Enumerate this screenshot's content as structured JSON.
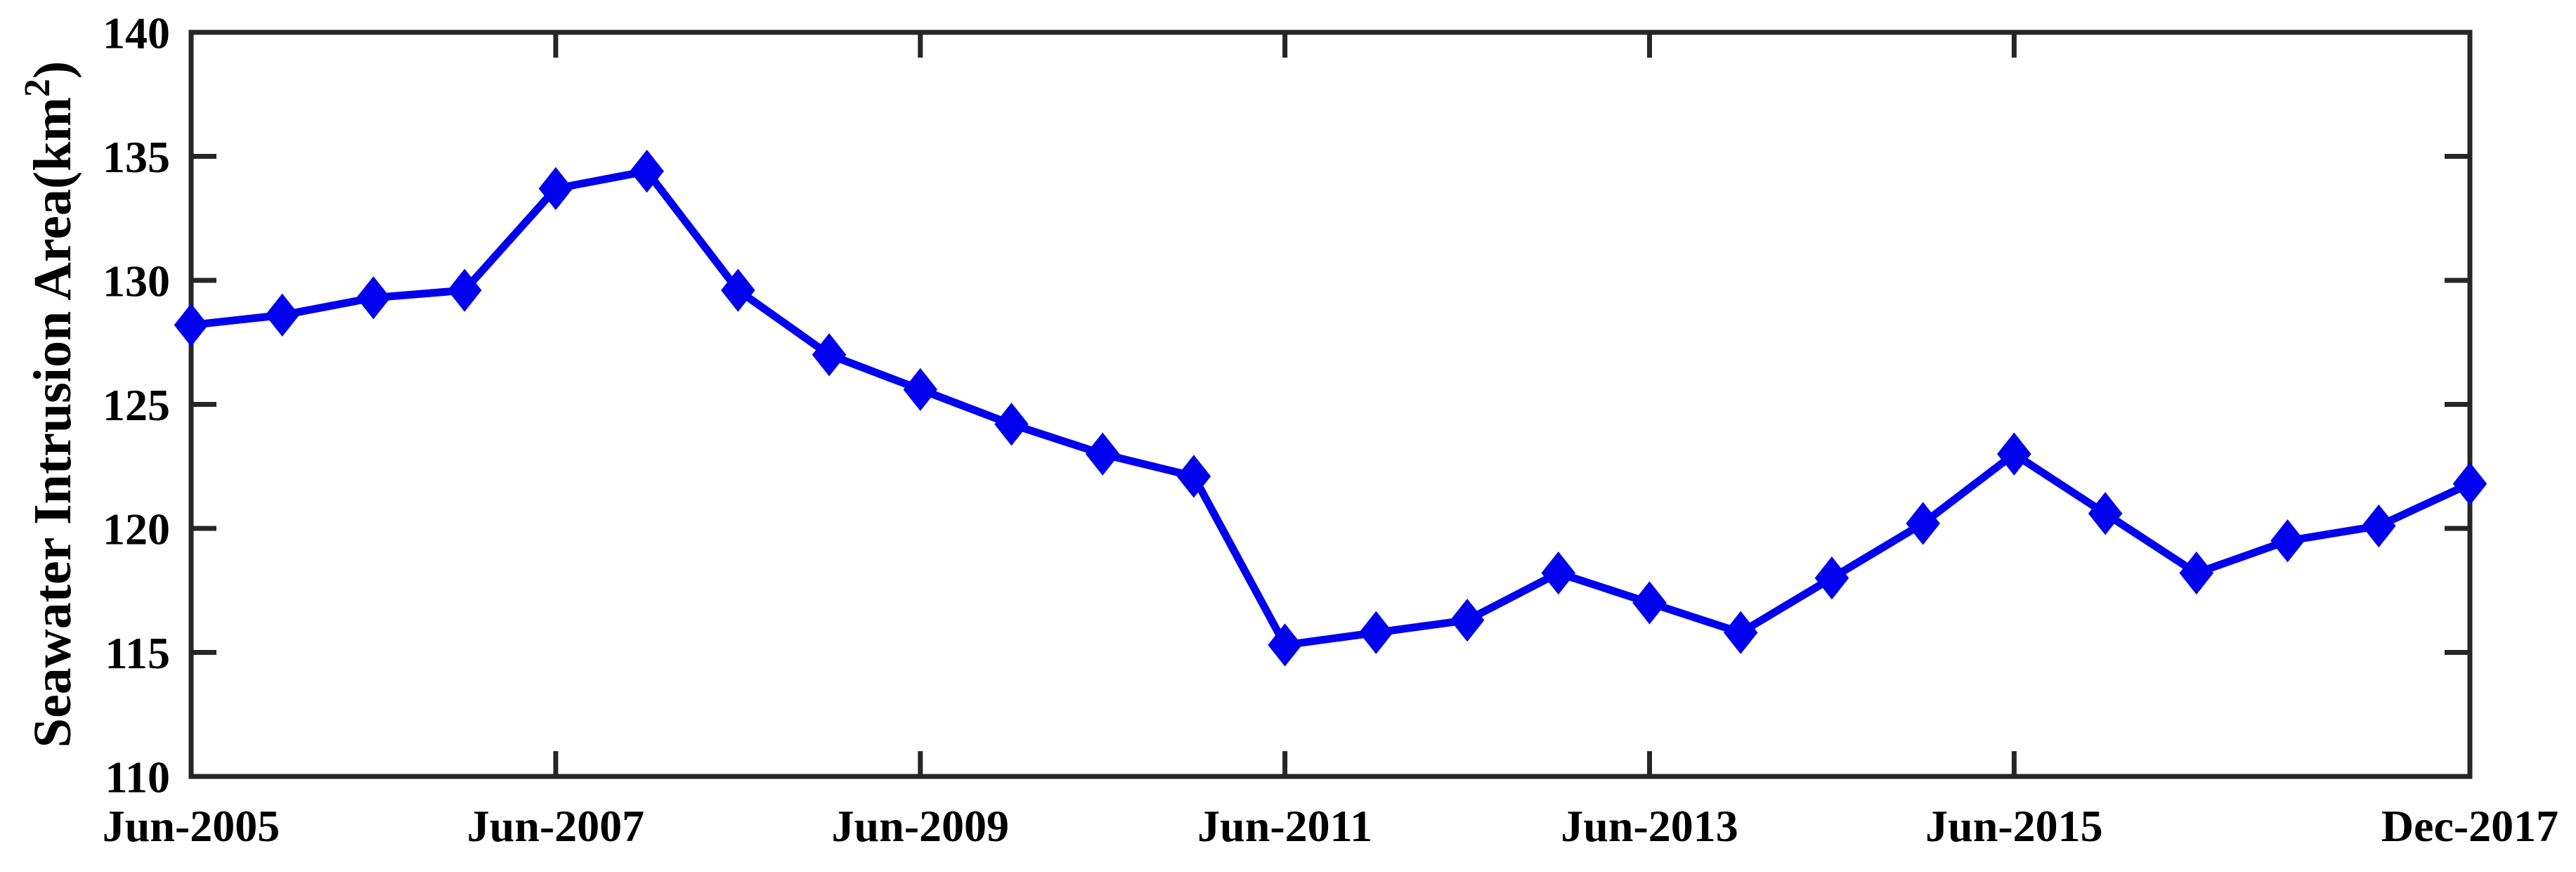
{
  "figure": {
    "background": "#ffffff",
    "axis_color": "#262626",
    "text_color": "#000000"
  },
  "chart_data": {
    "type": "line",
    "title": "",
    "xlabel": "",
    "ylabel": "Seawater Intrusion Area(km2)",
    "ylabel_base": "Seawater Intrusion Area(km",
    "ylabel_superscript": "2",
    "ylabel_close": ")",
    "ylim": [
      110,
      140
    ],
    "yticks": [
      110,
      115,
      120,
      125,
      130,
      135,
      140
    ],
    "grid": false,
    "legend_position": "none",
    "xtick_labels": [
      "Jun-2005",
      "Jun-2007",
      "Jun-2009",
      "Jun-2011",
      "Jun-2013",
      "Jun-2015",
      "Dec-2017"
    ],
    "xtick_indices": [
      0,
      4,
      8,
      12,
      16,
      20,
      25
    ],
    "categories": [
      "Jun-2005",
      "Dec-2005",
      "Jun-2006",
      "Dec-2006",
      "Jun-2007",
      "Dec-2007",
      "Jun-2008",
      "Dec-2008",
      "Jun-2009",
      "Dec-2009",
      "Jun-2010",
      "Dec-2010",
      "Jun-2011",
      "Dec-2011",
      "Jun-2012",
      "Dec-2012",
      "Jun-2013",
      "Dec-2013",
      "Jun-2014",
      "Dec-2014",
      "Jun-2015",
      "Dec-2015",
      "Jun-2016",
      "Dec-2016",
      "Jun-2017",
      "Dec-2017"
    ],
    "series": [
      {
        "name": "Seawater Intrusion Area",
        "color": "#0000EE",
        "marker": "diamond",
        "values": [
          128.2,
          128.6,
          129.3,
          129.6,
          133.7,
          134.4,
          129.6,
          127.0,
          125.6,
          124.2,
          123.0,
          122.1,
          115.3,
          115.8,
          116.3,
          118.2,
          117.0,
          115.8,
          118.0,
          120.2,
          123.0,
          120.6,
          118.2,
          119.5,
          120.1,
          121.8
        ]
      }
    ]
  }
}
